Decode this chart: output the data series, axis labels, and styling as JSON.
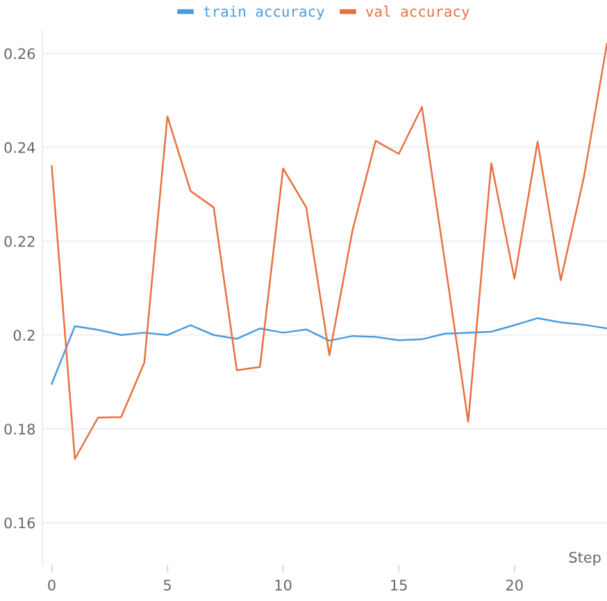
{
  "chart_data": {
    "type": "line",
    "xlabel": "Step",
    "x": [
      0,
      1,
      2,
      3,
      4,
      5,
      6,
      7,
      8,
      9,
      10,
      11,
      12,
      13,
      14,
      15,
      16,
      17,
      18,
      19,
      20,
      21,
      22,
      23,
      24
    ],
    "series": [
      {
        "name": "train accuracy",
        "color": "#4c9be0",
        "values": [
          0.1896,
          0.2019,
          0.2011,
          0.2,
          0.2005,
          0.2,
          0.2021,
          0.2,
          0.1992,
          0.2014,
          0.2005,
          0.2012,
          0.1988,
          0.1998,
          0.1996,
          0.1989,
          0.1991,
          0.2003,
          0.2005,
          0.2007,
          0.2021,
          0.2036,
          0.2027,
          0.2022,
          0.2014
        ]
      },
      {
        "name": "val accuracy",
        "color": "#e8703f",
        "values": [
          0.236,
          0.1736,
          0.1824,
          0.1825,
          0.1941,
          0.2466,
          0.2307,
          0.2272,
          0.1925,
          0.1932,
          0.2355,
          0.2272,
          0.1957,
          0.2223,
          0.2414,
          0.2386,
          0.2486,
          0.2154,
          0.1815,
          0.2366,
          0.212,
          0.2412,
          0.2117,
          0.2336,
          0.2621
        ]
      }
    ],
    "xlim": [
      -0.4,
      24
    ],
    "ylim": [
      0.151,
      0.265
    ],
    "xticks": [
      0,
      5,
      10,
      15,
      20
    ],
    "yticks": [
      {
        "value": 0.16,
        "label": "0.16"
      },
      {
        "value": 0.18,
        "label": "0.18"
      },
      {
        "value": 0.2,
        "label": "0.2"
      },
      {
        "value": 0.22,
        "label": "0.22"
      },
      {
        "value": 0.24,
        "label": "0.24"
      },
      {
        "value": 0.26,
        "label": "0.26"
      }
    ],
    "grid": "y",
    "legend": "top",
    "marker": "none",
    "line_style": "solid"
  }
}
